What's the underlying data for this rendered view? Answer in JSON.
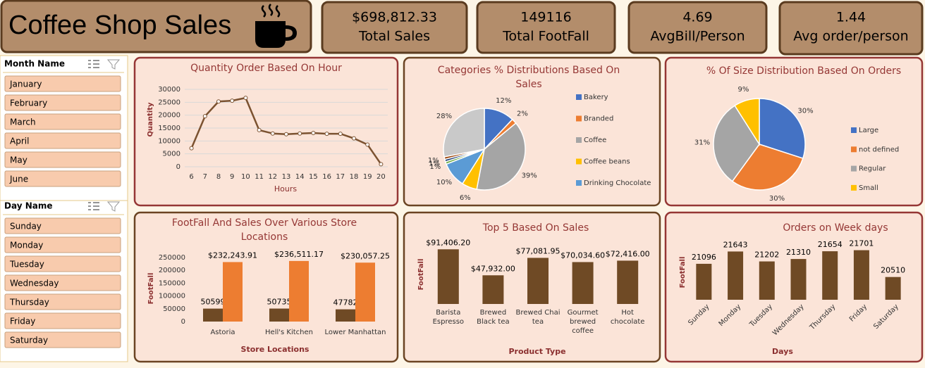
{
  "header": {
    "title": "Coffee Shop Sales"
  },
  "kpis": [
    {
      "value": "$698,812.33",
      "label": "Total Sales"
    },
    {
      "value": "149116",
      "label": "Total FootFall"
    },
    {
      "value": "4.69",
      "label": "AvgBill/Person"
    },
    {
      "value": "1.44",
      "label": "Avg order/person"
    }
  ],
  "slicers": [
    {
      "title": "Month Name",
      "items": [
        "January",
        "February",
        "March",
        "April",
        "May",
        "June"
      ]
    },
    {
      "title": "Day Name",
      "items": [
        "Sunday",
        "Monday",
        "Tuesday",
        "Wednesday",
        "Thursday",
        "Friday",
        "Saturday"
      ]
    }
  ],
  "chart_data": [
    {
      "type": "line",
      "title": "Quantity Order Based On Hour",
      "categories": [
        "6",
        "7",
        "8",
        "9",
        "10",
        "11",
        "12",
        "13",
        "14",
        "15",
        "16",
        "17",
        "18",
        "19",
        "20"
      ],
      "values": [
        7200,
        19600,
        25300,
        25600,
        26700,
        14200,
        12900,
        12600,
        12900,
        13100,
        12800,
        12800,
        11000,
        8600,
        1000
      ],
      "color": "#7b5230",
      "ylim": [
        0,
        30000
      ],
      "yticks": [
        0,
        5000,
        10000,
        15000,
        20000,
        25000,
        30000
      ],
      "grid": true,
      "y_label": "Quantity",
      "x_label": "Hours"
    },
    {
      "type": "pie",
      "title": "Categories % Distributions Based On Sales",
      "categories": [
        "Bakery",
        "Branded",
        "Coffee",
        "Coffee beans",
        "Drinking Chocolate",
        null,
        null,
        null,
        null
      ],
      "values": [
        12,
        2,
        39,
        6,
        10,
        1,
        1,
        1,
        28
      ],
      "value_labels": [
        "12%",
        "2%",
        "39%",
        "6%",
        "10%",
        "1%",
        "1%",
        "1%",
        "28%"
      ],
      "colors": [
        "#4472c4",
        "#ed7d31",
        "#a5a5a5",
        "#ffc000",
        "#5b9bd5",
        "#70ad47",
        "#264478",
        "#9e480e",
        "#c9c9c9"
      ],
      "legend": "right"
    },
    {
      "type": "pie",
      "title": "% Of Size Distribution Based On Orders",
      "categories": [
        "Large",
        "not defined",
        "Regular",
        "Small"
      ],
      "values": [
        30,
        30,
        31,
        9
      ],
      "value_labels": [
        "30%",
        "30%",
        "31%",
        "9%"
      ],
      "colors": [
        "#4472c4",
        "#ed7d31",
        "#a5a5a5",
        "#ffc000"
      ],
      "legend": "right"
    },
    {
      "type": "bar",
      "title": "FootFall And Sales Over Various Store Locations",
      "categories": [
        "Astoria",
        "Hell's Kitchen",
        "Lower Manhattan"
      ],
      "series": [
        {
          "color": "#6f4a25",
          "values": [
            50599,
            50735,
            47782
          ]
        },
        {
          "color": "#ed7d31",
          "values": [
            232243.91,
            236511.17,
            230057.25
          ],
          "value_labels": [
            "$232,243.91",
            "$236,511.17",
            "$230,057.25"
          ]
        }
      ],
      "ylim": [
        0,
        250000
      ],
      "yticks": [
        0,
        50000,
        100000,
        150000,
        200000,
        250000
      ],
      "y_label": "FootFall",
      "x_label": "Store Locations"
    },
    {
      "type": "bar",
      "title": "Top 5 Based On Sales",
      "categories": [
        "Barista Espresso",
        "Brewed Black tea",
        "Brewed Chai tea",
        "Gourmet brewed coffee",
        "Hot chocolate"
      ],
      "values": [
        91406.2,
        47932,
        77081.95,
        70034.6,
        72416
      ],
      "value_labels": [
        "$91,406.20",
        "$47,932.00",
        "$77,081.95",
        "$70,034.60",
        "$72,416.00"
      ],
      "color": "#6f4a25",
      "ylim": [
        0,
        100000
      ],
      "y_label": "FootFall",
      "x_label": "Product Type"
    },
    {
      "type": "bar",
      "title": "Orders on Week days",
      "categories": [
        "Sunday",
        "Monday",
        "Tuesday",
        "Wednesday",
        "Thursday",
        "Friday",
        "Saturday"
      ],
      "values": [
        21096,
        21643,
        21202,
        21310,
        21654,
        21701,
        20510
      ],
      "color": "#6f4a25",
      "ylim": [
        19500,
        22000
      ],
      "y_label": "FootFall",
      "x_label": "Days"
    }
  ]
}
